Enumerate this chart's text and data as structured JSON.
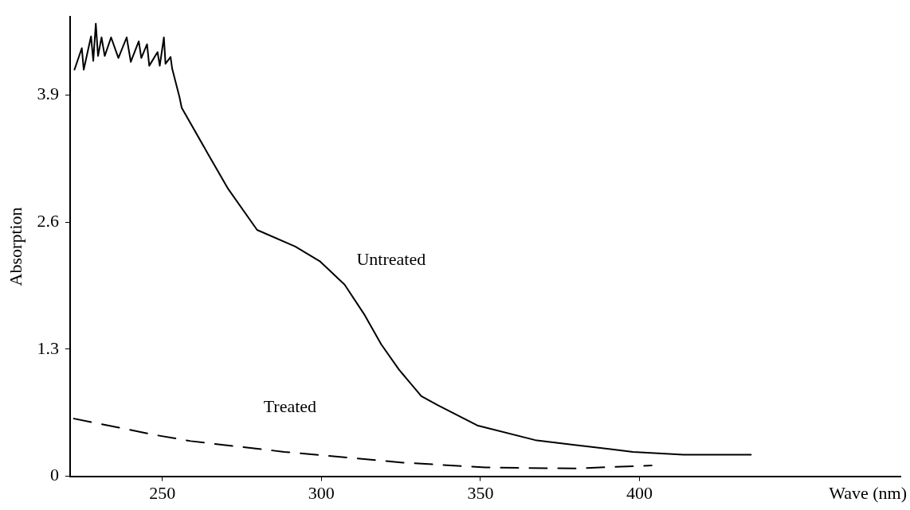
{
  "chart_data": {
    "type": "line",
    "xlabel": "Wave (nm)",
    "ylabel": "Absorption",
    "xlim": [
      221,
      482
    ],
    "ylim": [
      0,
      4.7
    ],
    "xticks": [
      250,
      300,
      350,
      400
    ],
    "yticks": [
      0,
      1.3,
      2.6,
      3.9
    ],
    "grid": false,
    "legend": false,
    "marker": "none",
    "series": [
      {
        "name": "Untreated",
        "color": "#000000",
        "line_style": "solid",
        "x": [
          222.4,
          224.7,
          225.3,
          227.6,
          228.3,
          229.1,
          229.8,
          230.9,
          231.9,
          233.9,
          236.2,
          238.8,
          240.1,
          242.6,
          243.4,
          245.2,
          245.9,
          248.5,
          249.2,
          250.5,
          251.0,
          252.6,
          253.1,
          255.4,
          256.1,
          264.5,
          270.7,
          279.8,
          291.8,
          299.5,
          307.3,
          313.6,
          318.8,
          324.4,
          331.4,
          336.4,
          349.0,
          367.2,
          379.6,
          397.9,
          413.8,
          435.0
        ],
        "values": [
          4.16,
          4.38,
          4.16,
          4.5,
          4.25,
          4.63,
          4.3,
          4.49,
          4.3,
          4.49,
          4.28,
          4.49,
          4.24,
          4.45,
          4.28,
          4.42,
          4.2,
          4.34,
          4.2,
          4.49,
          4.22,
          4.29,
          4.17,
          3.88,
          3.77,
          3.29,
          2.94,
          2.52,
          2.35,
          2.2,
          1.96,
          1.65,
          1.35,
          1.09,
          0.82,
          0.73,
          0.52,
          0.37,
          0.32,
          0.25,
          0.22,
          0.22
        ]
      },
      {
        "name": "Treated",
        "color": "#000000",
        "line_style": "dashed",
        "x": [
          222.2,
          248.2,
          258.9,
          288.3,
          325.6,
          351.6,
          379.6,
          403.8
        ],
        "values": [
          0.59,
          0.42,
          0.36,
          0.25,
          0.14,
          0.09,
          0.08,
          0.11
        ]
      }
    ]
  }
}
